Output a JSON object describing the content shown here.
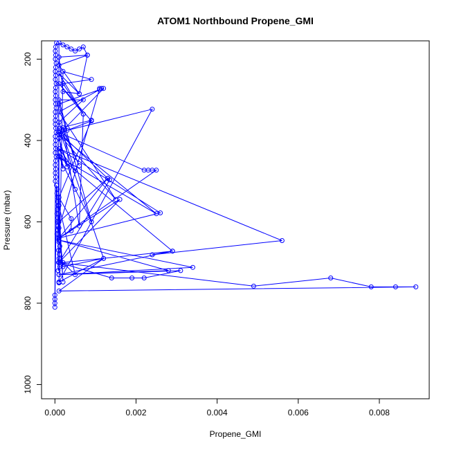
{
  "chart_data": {
    "type": "line",
    "title": "ATOM1 Northbound Propene_GMI",
    "xlabel": "Propene_GMI",
    "ylabel": "Pressure (mbar)",
    "xlim": [
      -0.00033,
      0.00923
    ],
    "ylim": [
      1035,
      155
    ],
    "y_reversed": true,
    "grid": false,
    "x_ticks": [
      0.0,
      0.002,
      0.004,
      0.006,
      0.008
    ],
    "x_tick_labels": [
      "0.000",
      "0.002",
      "0.004",
      "0.006",
      "0.008"
    ],
    "y_ticks": [
      200,
      400,
      600,
      800,
      1000
    ],
    "y_tick_labels": [
      "200",
      "400",
      "600",
      "800",
      "1000"
    ],
    "series": [
      {
        "color": "#0000ff",
        "x": [
          4e-05,
          2e-05,
          1e-05,
          2e-05,
          1e-05,
          3e-05,
          2e-05,
          1e-05,
          2e-05,
          1e-05,
          3e-05,
          2e-05,
          1e-05,
          2e-05,
          1e-05,
          2e-05,
          3e-05,
          1e-05,
          2e-05,
          1e-05,
          1e-05,
          2e-05,
          3e-05,
          1e-05,
          2e-05,
          1e-05,
          2e-05,
          1e-05,
          3e-05,
          2e-05,
          1e-05,
          2e-05,
          1e-05,
          2e-05,
          1e-05,
          0.0,
          0.0,
          0.0,
          0.0,
          4e-05,
          6e-05,
          5e-05,
          6e-05,
          7e-05,
          8e-05,
          6e-05,
          5e-05,
          7e-05,
          6e-05,
          8e-05,
          7e-05,
          5e-05,
          6e-05,
          0.0001,
          0.00012,
          9e-05,
          0.00011,
          0.0001,
          9e-05,
          0.00012,
          8e-05,
          0.0001,
          0.0002,
          0.0003,
          0.0004,
          0.0005,
          0.0006,
          0.0007,
          0.0008,
          0.0006,
          0.0002,
          0.0001,
          0.0008,
          0.0001,
          0.0006,
          0.0001,
          0.0007,
          0.0001,
          0.0009,
          0.0003,
          0.0001,
          0.0007,
          0.0001,
          0.0005,
          0.0001,
          0.0003,
          0.0001,
          0.0005,
          0.0001,
          0.0009,
          0.0001,
          0.0011,
          0.0001,
          0.0015,
          0.0001,
          0.0025,
          0.0001,
          0.0029,
          0.0002,
          0.0005,
          0.0001,
          0.0002,
          0.0001,
          0.0013,
          0.0001,
          0.0002,
          0.0001,
          0.0001,
          0.0004,
          0.0004,
          0.0001,
          0.0009,
          0.0001,
          0.0012,
          0.0002,
          0.0001,
          0.0011,
          0.00115,
          0.0012,
          0.0002,
          0.0006,
          0.0002,
          0.0006,
          0.0007,
          0.0002,
          0.0009,
          0.0002,
          0.0001,
          0.0024,
          0.0001,
          0.0022,
          0.0023,
          0.0024,
          0.0025,
          0.0001,
          0.0013,
          0.00135,
          0.0001,
          0.0016,
          0.0001,
          0.0026,
          0.0001,
          0.0056,
          0.0024,
          0.0029,
          0.0001,
          0.0034,
          0.0001,
          0.0028,
          0.0001,
          0.0031,
          0.0022,
          0.0019,
          0.0014,
          0.0001,
          0.0049,
          0.0068,
          0.0078,
          0.0084,
          0.0089,
          0.0001,
          0.0012,
          0.0001,
          0.0001
        ],
        "y": [
          160,
          170,
          180,
          190,
          200,
          210,
          220,
          230,
          240,
          250,
          260,
          270,
          280,
          290,
          300,
          310,
          320,
          330,
          340,
          350,
          360,
          370,
          380,
          390,
          400,
          410,
          420,
          430,
          440,
          450,
          460,
          470,
          480,
          490,
          500,
          780,
          790,
          800,
          810,
          510,
          520,
          530,
          540,
          550,
          560,
          570,
          580,
          590,
          600,
          610,
          620,
          630,
          640,
          650,
          660,
          670,
          680,
          690,
          700,
          710,
          720,
          160,
          165,
          170,
          175,
          180,
          175,
          170,
          190,
          285,
          280,
          195,
          190,
          215,
          285,
          235,
          335,
          260,
          352,
          375,
          300,
          300,
          355,
          475,
          420,
          465,
          395,
          520,
          440,
          600,
          310,
          275,
          330,
          545,
          385,
          580,
          440,
          672,
          700,
          730,
          560,
          748,
          600,
          493,
          380,
          470,
          430,
          640,
          622,
          592,
          540,
          350,
          370,
          690,
          710,
          615,
          272,
          272,
          272,
          375,
          462,
          368,
          610,
          335,
          260,
          250,
          230,
          748,
          323,
          380,
          473,
          473,
          473,
          473,
          640,
          493,
          497,
          700,
          545,
          640,
          578,
          420,
          646,
          681,
          672,
          730,
          712,
          645,
          720,
          730,
          720,
          738,
          738,
          738,
          700,
          758,
          738,
          760,
          760,
          760,
          770,
          690,
          748,
          750
        ]
      }
    ]
  }
}
